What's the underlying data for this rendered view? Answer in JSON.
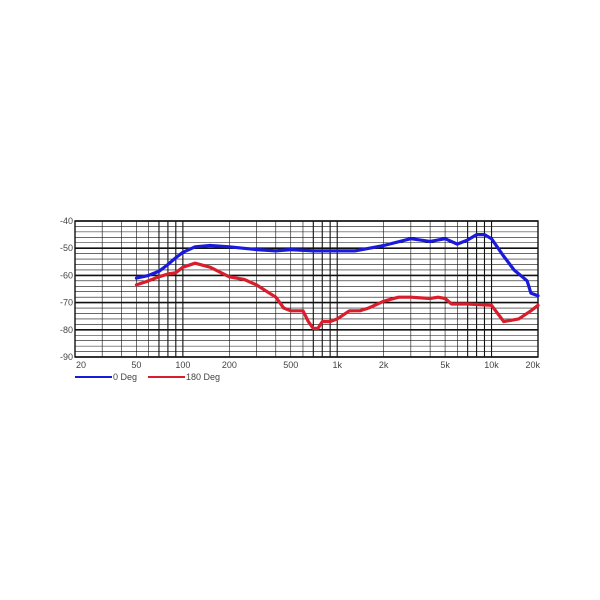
{
  "chart_data": {
    "type": "line",
    "title": "",
    "xlabel": "",
    "ylabel": "",
    "x_scale": "log",
    "xlim": [
      20,
      20000
    ],
    "ylim": [
      -90,
      -40
    ],
    "grid": true,
    "legend_placement": "bottom-left",
    "x_ticks": [
      {
        "value": 20,
        "label": "20"
      },
      {
        "value": 50,
        "label": "50"
      },
      {
        "value": 100,
        "label": "100"
      },
      {
        "value": 200,
        "label": "200"
      },
      {
        "value": 500,
        "label": "500"
      },
      {
        "value": 1000,
        "label": "1k"
      },
      {
        "value": 2000,
        "label": "2k"
      },
      {
        "value": 5000,
        "label": "5k"
      },
      {
        "value": 10000,
        "label": "10k"
      },
      {
        "value": 20000,
        "label": "20k"
      }
    ],
    "y_ticks": [
      {
        "value": -40,
        "label": "-40"
      },
      {
        "value": -50,
        "label": "-50"
      },
      {
        "value": -60,
        "label": "-60"
      },
      {
        "value": -70,
        "label": "-70"
      },
      {
        "value": -80,
        "label": "-80"
      },
      {
        "value": -90,
        "label": "-90"
      }
    ],
    "series": [
      {
        "name": "0 Deg",
        "color": "#1a1adc",
        "x": [
          50,
          60,
          70,
          80,
          90,
          100,
          120,
          150,
          200,
          300,
          400,
          500,
          700,
          1000,
          1300,
          2000,
          3000,
          4000,
          5000,
          6000,
          7000,
          8000,
          9000,
          10000,
          12000,
          14000,
          17000,
          18000,
          20000
        ],
        "y": [
          -61,
          -60,
          -58.5,
          -56,
          -53.5,
          -51.5,
          -49.5,
          -49,
          -49.5,
          -50.5,
          -51,
          -50.5,
          -51,
          -51,
          -51,
          -49,
          -46.5,
          -47.5,
          -46.5,
          -48.5,
          -47,
          -45,
          -45,
          -46.5,
          -53,
          -58,
          -62,
          -66.5,
          -67.5
        ]
      },
      {
        "name": "180 Deg",
        "color": "#d81e2c",
        "x": [
          50,
          60,
          70,
          80,
          90,
          100,
          120,
          150,
          200,
          250,
          300,
          400,
          450,
          500,
          550,
          600,
          650,
          700,
          750,
          800,
          900,
          1000,
          1200,
          1400,
          1600,
          2000,
          2500,
          3000,
          4000,
          4500,
          5000,
          5500,
          7000,
          10000,
          12000,
          15000,
          18000,
          20000
        ],
        "y": [
          -63.5,
          -62,
          -60.5,
          -59.5,
          -59,
          -57,
          -55.5,
          -57,
          -60.5,
          -61.5,
          -63.5,
          -68,
          -72,
          -73,
          -73,
          -73,
          -77,
          -79.5,
          -79.5,
          -77,
          -77,
          -76,
          -73,
          -73,
          -72,
          -69.5,
          -68,
          -68,
          -68.5,
          -68,
          -68.5,
          -70.5,
          -70.5,
          -71,
          -77,
          -76,
          -73,
          -71
        ]
      }
    ]
  }
}
